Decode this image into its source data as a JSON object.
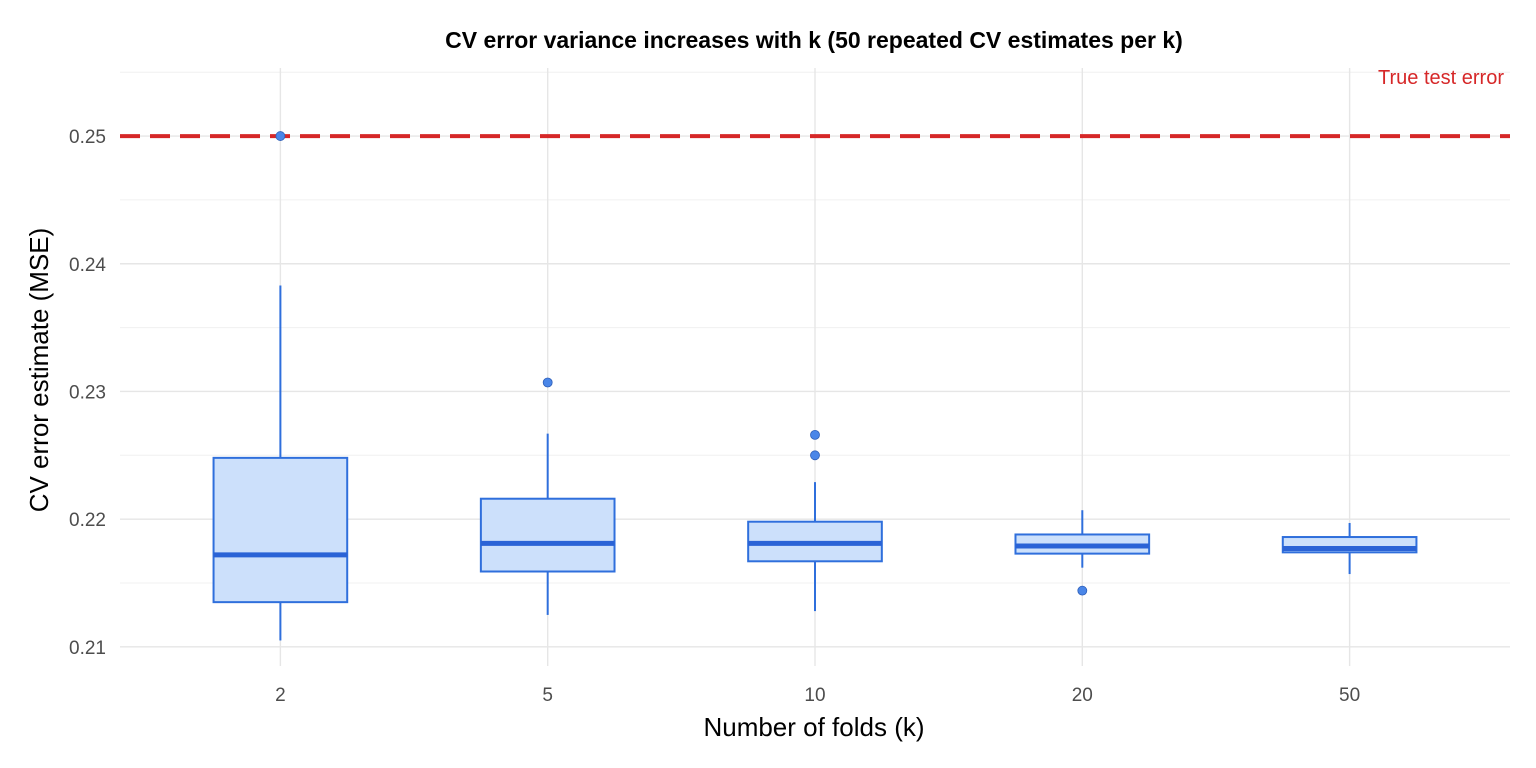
{
  "chart_data": {
    "type": "box",
    "title": "CV error variance increases with k (50 repeated CV estimates per k)",
    "xlabel": "Number of folds (k)",
    "ylabel": "CV error estimate (MSE)",
    "ylim": [
      0.2085,
      0.2558
    ],
    "y_ticks": [
      0.21,
      0.22,
      0.23,
      0.24,
      0.25
    ],
    "y_tick_labels": [
      "0.21",
      "0.22",
      "0.23",
      "0.24",
      "0.25"
    ],
    "categories": [
      "2",
      "5",
      "10",
      "20",
      "50"
    ],
    "grid": true,
    "colors": {
      "box_fill": "#cce0fb",
      "box_line": "#2f6fdc",
      "median": "#2a63d6",
      "outlier": "#4a86e8",
      "reference": "#d62728"
    },
    "boxes": [
      {
        "k": "2",
        "whisker_low": 0.2105,
        "q1": 0.2135,
        "median": 0.2172,
        "q3": 0.2248,
        "whisker_high": 0.2383,
        "outliers": [
          0.25
        ]
      },
      {
        "k": "5",
        "whisker_low": 0.2125,
        "q1": 0.2159,
        "median": 0.2181,
        "q3": 0.2216,
        "whisker_high": 0.2267,
        "outliers": [
          0.2307
        ]
      },
      {
        "k": "10",
        "whisker_low": 0.2128,
        "q1": 0.2167,
        "median": 0.2181,
        "q3": 0.2198,
        "whisker_high": 0.2229,
        "outliers": [
          0.2266,
          0.225
        ]
      },
      {
        "k": "20",
        "whisker_low": 0.2162,
        "q1": 0.2173,
        "median": 0.2179,
        "q3": 0.2188,
        "whisker_high": 0.2207,
        "outliers": [
          0.2144
        ]
      },
      {
        "k": "50",
        "whisker_low": 0.2157,
        "q1": 0.2174,
        "median": 0.2177,
        "q3": 0.2186,
        "whisker_high": 0.2197,
        "outliers": []
      }
    ],
    "reference_line": {
      "value": 0.25,
      "label": "True test error",
      "style": "dashed"
    }
  }
}
